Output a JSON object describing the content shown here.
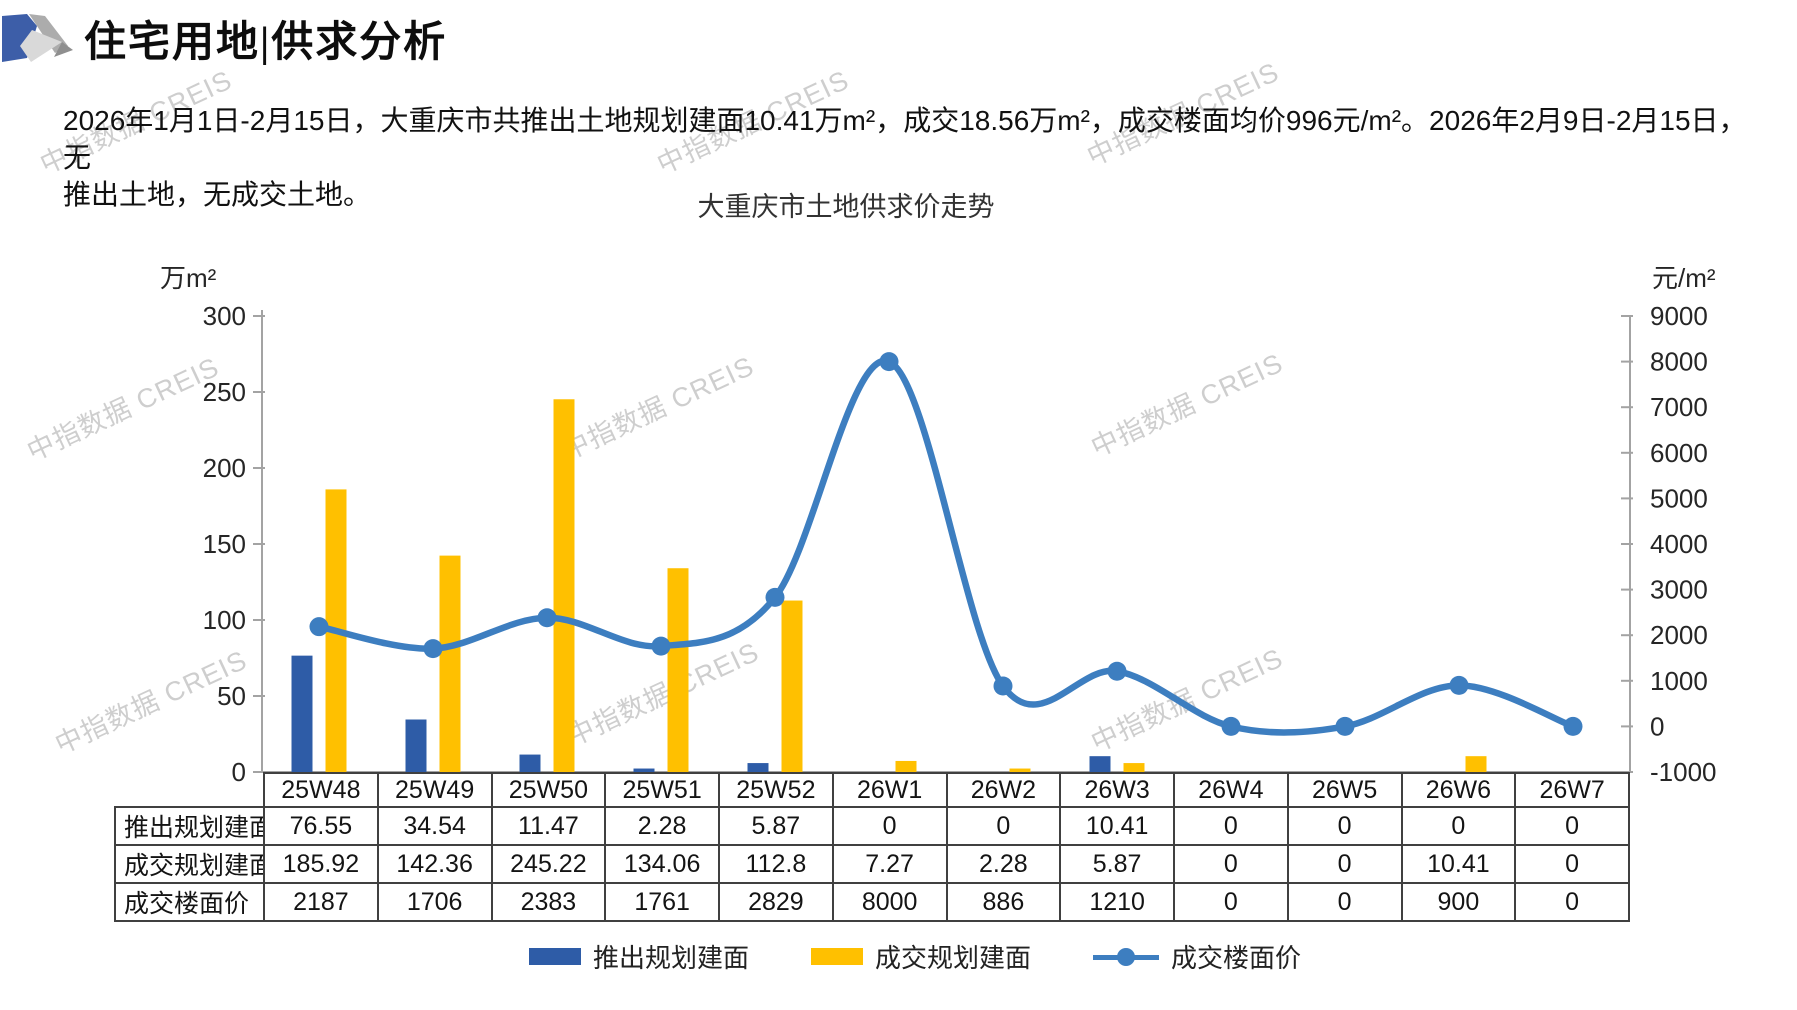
{
  "header": {
    "title": "住宅用地|供求分析"
  },
  "intro": {
    "lines": [
      "2026年1月1日-2月15日，大重庆市共推出土地规划建面10.41万m²，成交18.56万m²，成交楼面均价996元/m²。2026年2月9日-2月15日，无",
      "推出土地，无成交土地。"
    ]
  },
  "watermark": {
    "text": "中指数据 CREIS"
  },
  "chart_data": {
    "type": "bar+line",
    "title": "大重庆市土地供求价走势",
    "categories": [
      "25W48",
      "25W49",
      "25W50",
      "25W51",
      "25W52",
      "26W1",
      "26W2",
      "26W3",
      "26W4",
      "26W5",
      "26W6",
      "26W7"
    ],
    "left_axis": {
      "unit": "万m²",
      "min": 0,
      "max": 300,
      "step": 50
    },
    "right_axis": {
      "unit": "元/m²",
      "min": -1000,
      "max": 9000,
      "step": 1000
    },
    "grid": false,
    "legend_position": "bottom",
    "series": [
      {
        "name": "推出规划建面",
        "type": "bar",
        "axis": "left",
        "color": "#2E5CA7",
        "values": [
          76.55,
          34.54,
          11.47,
          2.28,
          5.87,
          0,
          0,
          10.41,
          0,
          0,
          0,
          0
        ]
      },
      {
        "name": "成交规划建面",
        "type": "bar",
        "axis": "left",
        "color": "#FFC000",
        "values": [
          185.92,
          142.36,
          245.22,
          134.06,
          112.8,
          7.27,
          2.28,
          5.87,
          0,
          0,
          10.41,
          0
        ]
      },
      {
        "name": "成交楼面价",
        "type": "line",
        "axis": "right",
        "color": "#3D7EC0",
        "values": [
          2187,
          1706,
          2383,
          1761,
          2829,
          8000,
          886,
          1210,
          0,
          0,
          900,
          0
        ]
      }
    ]
  },
  "colors": {
    "logo_blue": "#3D5EA8",
    "logo_gray": "#ACACAC",
    "logo_light": "#D9D9D9",
    "logo_dark": "#8F8F8F",
    "axis_line": "#A3A3A3",
    "table_border": "#404040",
    "watermark": "#C6C6C6"
  }
}
